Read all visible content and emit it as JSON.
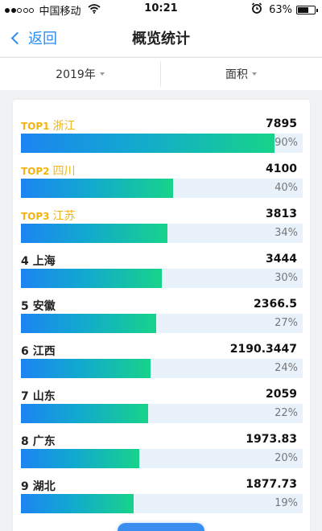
{
  "status_bar": {
    "carrier": "中国移动",
    "time": "10:21",
    "battery": "63%",
    "signal_bars_filled": 2,
    "signal_bars_total": 5
  },
  "nav": {
    "back_label": "返回",
    "title": "概览统计"
  },
  "filters": {
    "year": "2019年",
    "metric": "面积"
  },
  "colors": {
    "accent": "#2b8cf3",
    "top_rank": "#f2b40c",
    "bar_start": "#1c84f2",
    "bar_end": "#17d38a",
    "track": "#e9f1fb"
  },
  "rankings": [
    {
      "rank": "TOP1",
      "name": "浙江",
      "value": "7895",
      "percent": "90%",
      "fill": 0.9,
      "top": true
    },
    {
      "rank": "TOP2",
      "name": "四川",
      "value": "4100",
      "percent": "40%",
      "fill": 0.54,
      "top": true
    },
    {
      "rank": "TOP3",
      "name": "江苏",
      "value": "3813",
      "percent": "34%",
      "fill": 0.52,
      "top": true
    },
    {
      "rank": "4",
      "name": "上海",
      "value": "3444",
      "percent": "30%",
      "fill": 0.5,
      "top": false
    },
    {
      "rank": "5",
      "name": "安徽",
      "value": "2366.5",
      "percent": "27%",
      "fill": 0.48,
      "top": false
    },
    {
      "rank": "6",
      "name": "江西",
      "value": "2190.3447",
      "percent": "24%",
      "fill": 0.46,
      "top": false
    },
    {
      "rank": "7",
      "name": "山东",
      "value": "2059",
      "percent": "22%",
      "fill": 0.45,
      "top": false
    },
    {
      "rank": "8",
      "name": "广东",
      "value": "1973.83",
      "percent": "20%",
      "fill": 0.42,
      "top": false
    },
    {
      "rank": "9",
      "name": "湖北",
      "value": "1877.73",
      "percent": "19%",
      "fill": 0.4,
      "top": false
    }
  ]
}
